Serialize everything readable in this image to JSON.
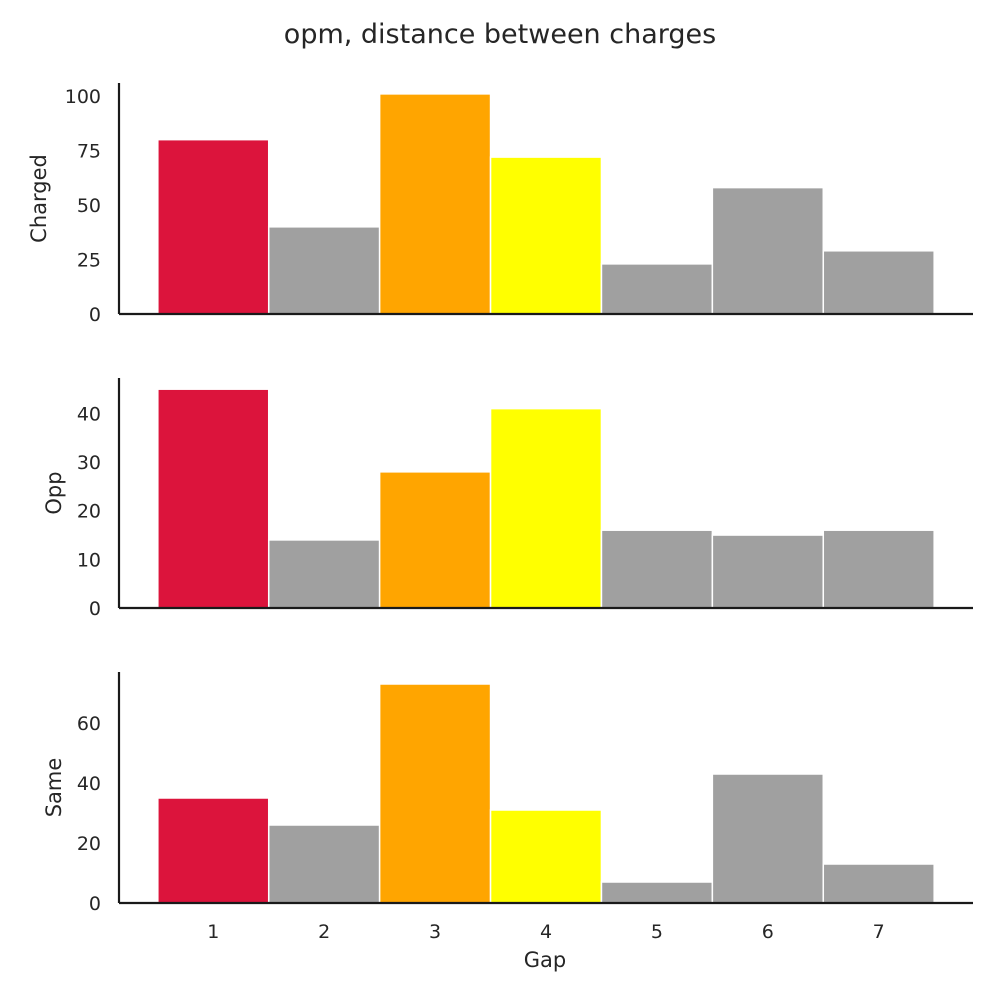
{
  "chart_data": {
    "type": "bar",
    "title": "opm, distance between charges",
    "xlabel": "Gap",
    "categories": [
      1,
      2,
      3,
      4,
      5,
      6,
      7
    ],
    "bar_colors": [
      "#dc143c",
      "#a0a0a0",
      "#ffa500",
      "#ffff00",
      "#a0a0a0",
      "#a0a0a0",
      "#a0a0a0"
    ],
    "grid": false,
    "panels": [
      {
        "ylabel": "Charged",
        "values": [
          80,
          40,
          101,
          72,
          23,
          58,
          29
        ],
        "ylim": [
          0,
          106
        ],
        "yticks": [
          0,
          25,
          50,
          75,
          100
        ]
      },
      {
        "ylabel": "Opp",
        "values": [
          45,
          14,
          28,
          41,
          16,
          15,
          16
        ],
        "ylim": [
          0,
          47.3
        ],
        "yticks": [
          0,
          10,
          20,
          30,
          40
        ]
      },
      {
        "ylabel": "Same",
        "values": [
          35,
          26,
          73,
          31,
          7,
          43,
          13
        ],
        "ylim": [
          0,
          77
        ],
        "yticks": [
          0,
          20,
          40,
          60
        ]
      }
    ]
  }
}
